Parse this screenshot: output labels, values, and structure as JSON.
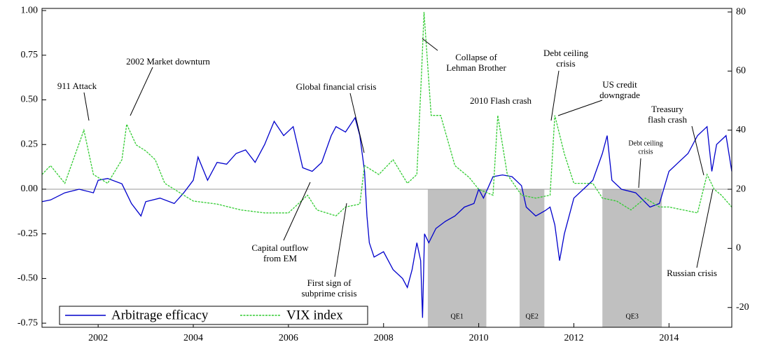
{
  "chart_data": {
    "type": "line",
    "xlim": [
      2000.82,
      2015.32
    ],
    "xticks": [
      2002,
      2004,
      2006,
      2008,
      2010,
      2012,
      2014
    ],
    "ylim": [
      -0.773,
      1.012
    ],
    "yticks": [
      {
        "value": 1,
        "label": "1.00"
      },
      {
        "value": 0.75,
        "label": "0.75"
      },
      {
        "value": 0.5,
        "label": "0.50"
      },
      {
        "value": 0.25,
        "label": "0.25"
      },
      {
        "value": 0,
        "label": "0.00"
      },
      {
        "value": -0.25,
        "label": "-0.25"
      },
      {
        "value": -0.5,
        "label": "-0.50"
      },
      {
        "value": -0.75,
        "label": "-0.75"
      }
    ],
    "y2lim": [
      -26.7,
      81.2
    ],
    "y2ticks": [
      80,
      60,
      40,
      20,
      0,
      -20
    ],
    "legend": "lower left",
    "series": [
      {
        "name": "Arbitrage efficacy",
        "color": "#0000cc",
        "axis": "y",
        "x": [
          2000.82,
          2001.0,
          2001.3,
          2001.6,
          2001.9,
          2002.0,
          2002.2,
          2002.5,
          2002.7,
          2002.9,
          2003.0,
          2003.3,
          2003.6,
          2003.8,
          2004.0,
          2004.1,
          2004.3,
          2004.5,
          2004.7,
          2004.9,
          2005.1,
          2005.3,
          2005.5,
          2005.7,
          2005.9,
          2006.1,
          2006.3,
          2006.5,
          2006.7,
          2006.9,
          2007.0,
          2007.2,
          2007.4,
          2007.5,
          2007.6,
          2007.65,
          2007.7,
          2007.8,
          2008.0,
          2008.2,
          2008.4,
          2008.5,
          2008.6,
          2008.7,
          2008.78,
          2008.82,
          2008.86,
          2008.95,
          2009.1,
          2009.3,
          2009.5,
          2009.7,
          2009.9,
          2010.0,
          2010.1,
          2010.3,
          2010.5,
          2010.7,
          2010.9,
          2011.0,
          2011.2,
          2011.4,
          2011.5,
          2011.6,
          2011.7,
          2011.8,
          2012.0,
          2012.2,
          2012.4,
          2012.6,
          2012.7,
          2012.8,
          2013.0,
          2013.3,
          2013.6,
          2013.8,
          2014.0,
          2014.2,
          2014.4,
          2014.6,
          2014.8,
          2014.9,
          2015.0,
          2015.2,
          2015.32
        ],
        "values": [
          -0.07,
          -0.06,
          -0.02,
          0.0,
          -0.02,
          0.05,
          0.06,
          0.03,
          -0.08,
          -0.15,
          -0.07,
          -0.05,
          -0.08,
          -0.02,
          0.05,
          0.18,
          0.05,
          0.15,
          0.14,
          0.2,
          0.22,
          0.15,
          0.25,
          0.38,
          0.3,
          0.35,
          0.12,
          0.1,
          0.15,
          0.3,
          0.35,
          0.32,
          0.4,
          0.3,
          0.1,
          -0.15,
          -0.3,
          -0.38,
          -0.35,
          -0.45,
          -0.5,
          -0.55,
          -0.45,
          -0.3,
          -0.4,
          -0.72,
          -0.25,
          -0.3,
          -0.22,
          -0.18,
          -0.15,
          -0.1,
          -0.08,
          0.0,
          -0.05,
          0.07,
          0.08,
          0.07,
          0.02,
          -0.1,
          -0.15,
          -0.12,
          -0.1,
          -0.2,
          -0.4,
          -0.25,
          -0.05,
          0.0,
          0.05,
          0.2,
          0.3,
          0.05,
          0.0,
          -0.02,
          -0.1,
          -0.08,
          0.1,
          0.15,
          0.2,
          0.3,
          0.35,
          0.1,
          0.25,
          0.3,
          0.1
        ]
      },
      {
        "name": "VIX index",
        "color": "#33cc33",
        "axis": "y2",
        "x": [
          2000.82,
          2001.0,
          2001.3,
          2001.7,
          2001.9,
          2002.2,
          2002.5,
          2002.6,
          2002.8,
          2003.0,
          2003.2,
          2003.4,
          2003.8,
          2004.0,
          2004.5,
          2005.0,
          2005.5,
          2006.0,
          2006.4,
          2006.6,
          2007.0,
          2007.2,
          2007.5,
          2007.6,
          2007.9,
          2008.2,
          2008.5,
          2008.7,
          2008.8,
          2008.85,
          2009.0,
          2009.2,
          2009.5,
          2009.8,
          2010.0,
          2010.3,
          2010.4,
          2010.6,
          2010.9,
          2011.2,
          2011.5,
          2011.6,
          2011.8,
          2012.0,
          2012.4,
          2012.6,
          2012.9,
          2013.2,
          2013.5,
          2013.8,
          2014.0,
          2014.3,
          2014.6,
          2014.8,
          2014.95,
          2015.1,
          2015.32
        ],
        "values": [
          25,
          28,
          22,
          40,
          25,
          22,
          30,
          42,
          35,
          33,
          30,
          22,
          18,
          16,
          15,
          13,
          12,
          12,
          18,
          13,
          11,
          14,
          15,
          28,
          25,
          30,
          22,
          25,
          60,
          80,
          45,
          45,
          28,
          24,
          20,
          18,
          45,
          25,
          18,
          17,
          18,
          45,
          32,
          22,
          22,
          17,
          16,
          13,
          17,
          14,
          14,
          13,
          12,
          25,
          20,
          18,
          14
        ]
      }
    ],
    "shaded_regions": [
      {
        "label": "QE1",
        "x": [
          2008.93,
          2010.16
        ]
      },
      {
        "label": "QE2",
        "x": [
          2010.86,
          2011.38
        ]
      },
      {
        "label": "QE3",
        "x": [
          2012.6,
          2013.85
        ]
      }
    ],
    "annotations": [
      {
        "text": [
          "911 Attack"
        ]
      },
      {
        "text": [
          "2002 Market downturn"
        ]
      },
      {
        "text": [
          "Global financial crisis"
        ]
      },
      {
        "text": [
          "Collapse of",
          "Lehman Brother"
        ]
      },
      {
        "text": [
          "2010 Flash crash"
        ]
      },
      {
        "text": [
          "Debt ceiling",
          "crisis"
        ]
      },
      {
        "text": [
          "US credit",
          "downgrade"
        ]
      },
      {
        "text": [
          "Treasury",
          "flash crash"
        ]
      },
      {
        "text": [
          "Debt ceiling",
          "crisis"
        ]
      },
      {
        "text": [
          "Capital outflow",
          "from EM"
        ]
      },
      {
        "text": [
          "First sign of",
          "subprime crisis"
        ]
      },
      {
        "text": [
          "Russian crisis"
        ]
      }
    ]
  }
}
